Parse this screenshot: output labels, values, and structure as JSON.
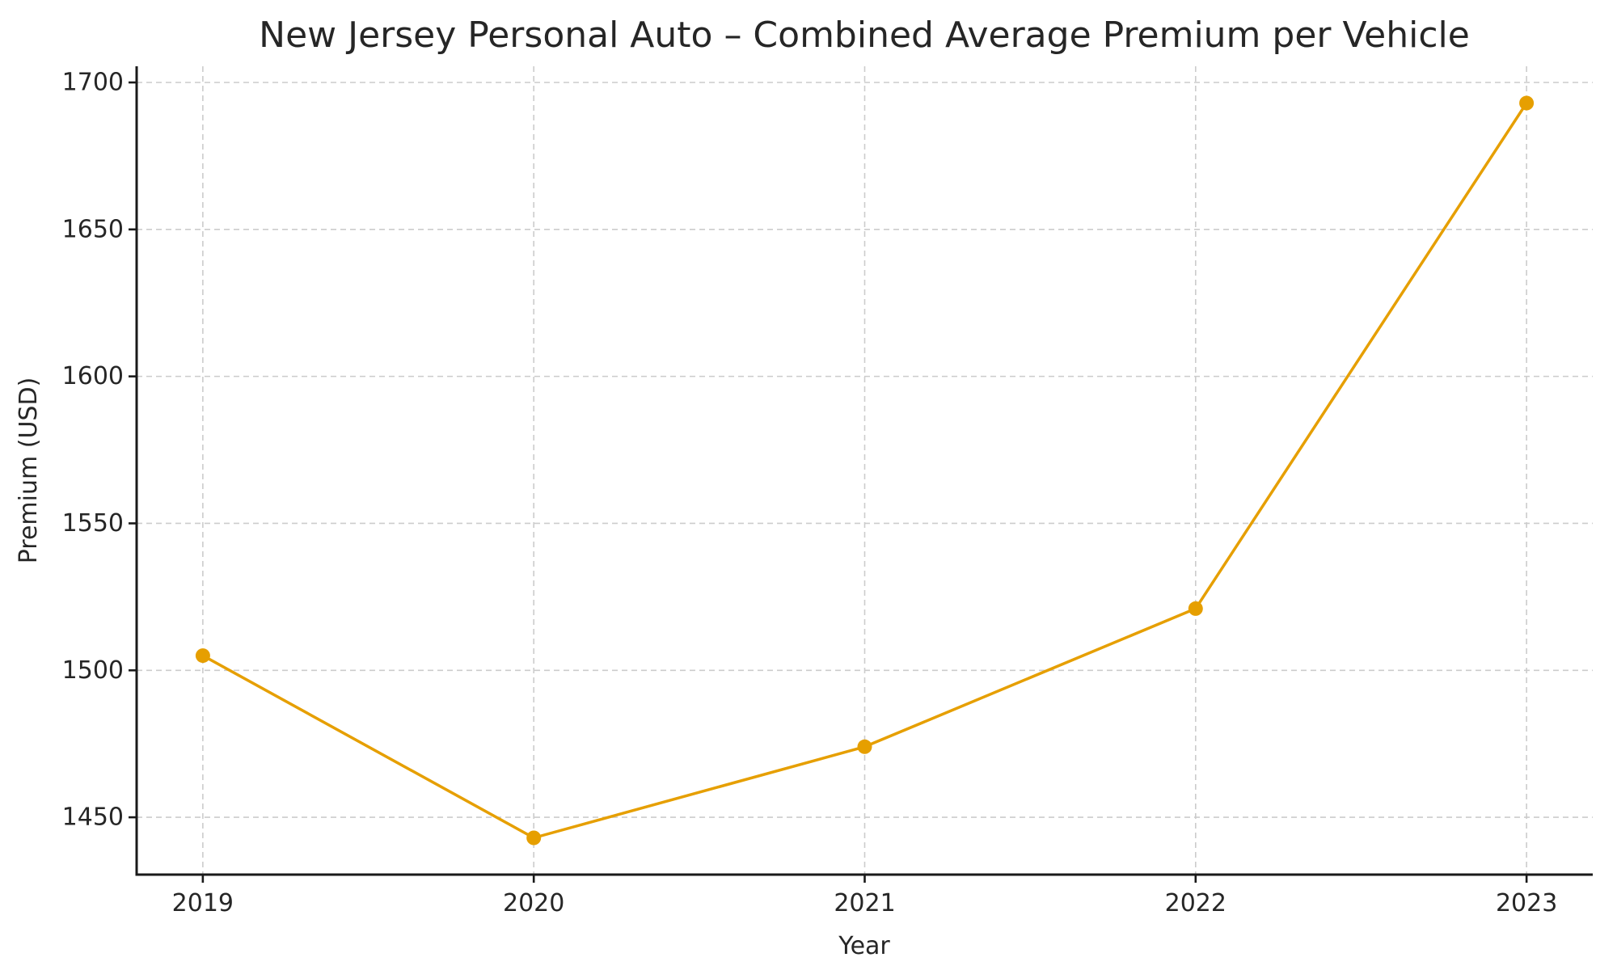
{
  "figure": {
    "background": "#ffffff"
  },
  "chart_data": {
    "type": "line",
    "title": "New Jersey Personal Auto – Combined Average Premium per Vehicle",
    "xlabel": "Year",
    "ylabel": "Premium (USD)",
    "categories": [
      "2019",
      "2020",
      "2021",
      "2022",
      "2023"
    ],
    "series": [
      {
        "name": "Combined Average Premium per Vehicle",
        "values": [
          1505,
          1443,
          1474,
          1521,
          1693
        ]
      }
    ],
    "ylim": [
      1430.5,
      1705.5
    ],
    "yticks": [
      1450,
      1500,
      1550,
      1600,
      1650,
      1700
    ],
    "grid": true,
    "grid_style": "dashed",
    "legend_position": "none",
    "colors": {
      "line": "#E69F00",
      "marker": "#E69F00",
      "grid": "#cccccc",
      "spine": "#1a1a1a",
      "text": "#262626"
    }
  }
}
